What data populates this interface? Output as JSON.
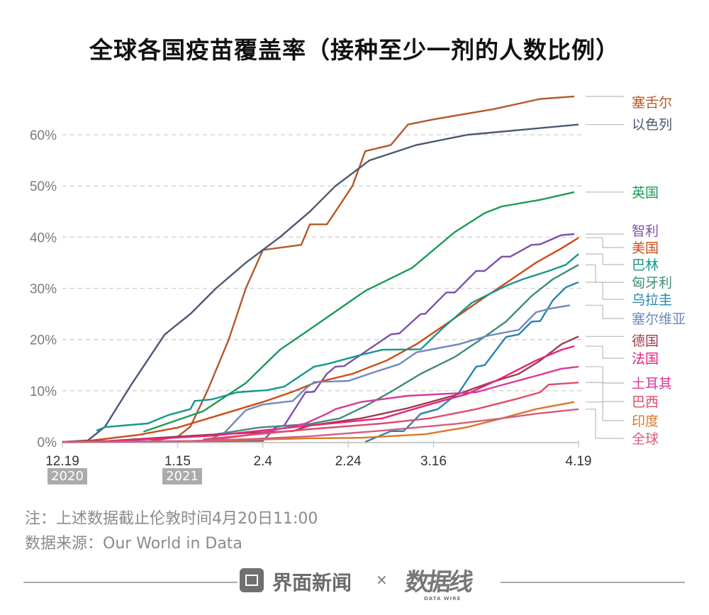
{
  "chart_data": {
    "type": "line",
    "title": "全球各国疫苗覆盖率（接种至少一剂的人数比例）",
    "xlabel": "",
    "ylabel": "",
    "x_range": [
      "2020-12-19",
      "2021-04-19"
    ],
    "x_ticks": [
      "12.19",
      "1.15",
      "2.4",
      "2.24",
      "3.16",
      "4.19"
    ],
    "x_tick_dates": [
      "2020-12-19",
      "2021-01-15",
      "2021-02-04",
      "2021-02-24",
      "2021-03-16",
      "2021-04-19"
    ],
    "year_badges": [
      "2020",
      "2021"
    ],
    "ylim": [
      0,
      68
    ],
    "y_ticks": [
      "0%",
      "10%",
      "20%",
      "30%",
      "40%",
      "50%",
      "60%"
    ],
    "y_tick_values": [
      0,
      10,
      20,
      30,
      40,
      50,
      60
    ],
    "grid": "horizontal dashed",
    "legend": "right, direct labels with leader lines",
    "series": [
      {
        "name": "塞舌尔",
        "color": "#b5572b",
        "points": [
          [
            "2020-12-19",
            0
          ],
          [
            "2021-01-08",
            0.1
          ],
          [
            "2021-01-15",
            1
          ],
          [
            "2021-01-18",
            3
          ],
          [
            "2021-01-22",
            10
          ],
          [
            "2021-01-27",
            20
          ],
          [
            "2021-01-31",
            30
          ],
          [
            "2021-02-04",
            37.5
          ],
          [
            "2021-02-13",
            38.5
          ],
          [
            "2021-02-15",
            42.5
          ],
          [
            "2021-02-19",
            42.5
          ],
          [
            "2021-02-21",
            45
          ],
          [
            "2021-02-25",
            50
          ],
          [
            "2021-02-28",
            56.8
          ],
          [
            "2021-03-06",
            58
          ],
          [
            "2021-03-10",
            62
          ],
          [
            "2021-03-16",
            63
          ],
          [
            "2021-03-30",
            65
          ],
          [
            "2021-04-10",
            67
          ],
          [
            "2021-04-18",
            67.5
          ]
        ]
      },
      {
        "name": "以色列",
        "color": "#4a5872",
        "points": [
          [
            "2020-12-19",
            0
          ],
          [
            "2020-12-25",
            0.3
          ],
          [
            "2020-12-29",
            3
          ],
          [
            "2021-01-04",
            11
          ],
          [
            "2021-01-12",
            21
          ],
          [
            "2021-01-18",
            25
          ],
          [
            "2021-01-24",
            30
          ],
          [
            "2021-01-31",
            35
          ],
          [
            "2021-02-08",
            40
          ],
          [
            "2021-02-15",
            45
          ],
          [
            "2021-02-21",
            50
          ],
          [
            "2021-03-01",
            55
          ],
          [
            "2021-03-12",
            58
          ],
          [
            "2021-03-24",
            60
          ],
          [
            "2021-04-06",
            61
          ],
          [
            "2021-04-19",
            62
          ]
        ]
      },
      {
        "name": "英国",
        "color": "#1a9a58",
        "points": [
          [
            "2021-01-07",
            2.0
          ],
          [
            "2021-01-21",
            6
          ],
          [
            "2021-01-31",
            11.5
          ],
          [
            "2021-02-08",
            18
          ],
          [
            "2021-02-15",
            22
          ],
          [
            "2021-02-28",
            29.5
          ],
          [
            "2021-03-11",
            34
          ],
          [
            "2021-03-21",
            41
          ],
          [
            "2021-03-28",
            44.7
          ],
          [
            "2021-04-01",
            46
          ],
          [
            "2021-04-10",
            47.3
          ],
          [
            "2021-04-18",
            48.8
          ]
        ]
      },
      {
        "name": "智利",
        "color": "#7f4fa8",
        "points": [
          [
            "2020-12-19",
            0
          ],
          [
            "2021-02-04",
            0.2
          ],
          [
            "2021-02-07",
            2.9
          ],
          [
            "2021-02-09",
            3.2
          ],
          [
            "2021-02-14",
            9.7
          ],
          [
            "2021-02-16",
            9.8
          ],
          [
            "2021-02-19",
            13.3
          ],
          [
            "2021-02-21",
            14.7
          ],
          [
            "2021-02-23",
            14.8
          ],
          [
            "2021-03-06",
            21
          ],
          [
            "2021-03-08",
            21.2
          ],
          [
            "2021-03-13",
            25
          ],
          [
            "2021-03-14",
            25
          ],
          [
            "2021-03-19",
            29.2
          ],
          [
            "2021-03-21",
            29.2
          ],
          [
            "2021-03-26",
            33.4
          ],
          [
            "2021-03-28",
            33.4
          ],
          [
            "2021-04-01",
            36.2
          ],
          [
            "2021-04-03",
            36.2
          ],
          [
            "2021-04-08",
            38.5
          ],
          [
            "2021-04-10",
            38.6
          ],
          [
            "2021-04-15",
            40.4
          ],
          [
            "2021-04-18",
            40.6
          ]
        ]
      },
      {
        "name": "美国",
        "color": "#cc4b15",
        "points": [
          [
            "2020-12-19",
            0
          ],
          [
            "2020-12-25",
            0.2
          ],
          [
            "2021-01-06",
            1.4
          ],
          [
            "2021-01-15",
            2.8
          ],
          [
            "2021-01-25",
            5.3
          ],
          [
            "2021-02-04",
            7.8
          ],
          [
            "2021-02-11",
            9.8
          ],
          [
            "2021-02-16",
            11.5
          ],
          [
            "2021-02-25",
            13.3
          ],
          [
            "2021-03-05",
            15.9
          ],
          [
            "2021-03-12",
            19.1
          ],
          [
            "2021-03-21",
            24.2
          ],
          [
            "2021-03-27",
            27.7
          ],
          [
            "2021-04-03",
            31.6
          ],
          [
            "2021-04-09",
            35
          ],
          [
            "2021-04-15",
            37.8
          ],
          [
            "2021-04-19",
            39.9
          ]
        ]
      },
      {
        "name": "巴林",
        "color": "#17968c",
        "points": [
          [
            "2020-12-27",
            2.2
          ],
          [
            "2020-12-29",
            2.9
          ],
          [
            "2021-01-08",
            3.6
          ],
          [
            "2021-01-13",
            5.3
          ],
          [
            "2021-01-18",
            6.4
          ],
          [
            "2021-01-19",
            8
          ],
          [
            "2021-01-23",
            8.3
          ],
          [
            "2021-01-29",
            9.7
          ],
          [
            "2021-02-05",
            10.1
          ],
          [
            "2021-02-09",
            10.8
          ],
          [
            "2021-02-16",
            14.7
          ],
          [
            "2021-02-19",
            15.2
          ],
          [
            "2021-02-27",
            17
          ],
          [
            "2021-03-04",
            18
          ],
          [
            "2021-03-13",
            18.1
          ],
          [
            "2021-03-18",
            22.1
          ],
          [
            "2021-03-25",
            27.2
          ],
          [
            "2021-04-02",
            30.5
          ],
          [
            "2021-04-06",
            31.8
          ],
          [
            "2021-04-12",
            33.4
          ],
          [
            "2021-04-16",
            34.6
          ],
          [
            "2021-04-19",
            36.7
          ]
        ]
      },
      {
        "name": "匈牙利",
        "color": "#3d8c78",
        "points": [
          [
            "2021-01-21",
            1.1
          ],
          [
            "2021-02-03",
            2.8
          ],
          [
            "2021-02-15",
            3.5
          ],
          [
            "2021-02-22",
            4.6
          ],
          [
            "2021-02-28",
            7
          ],
          [
            "2021-03-06",
            9.8
          ],
          [
            "2021-03-13",
            13.3
          ],
          [
            "2021-03-21",
            16.6
          ],
          [
            "2021-03-26",
            19.4
          ],
          [
            "2021-04-02",
            23.5
          ],
          [
            "2021-04-08",
            28.5
          ],
          [
            "2021-04-13",
            31.8
          ],
          [
            "2021-04-19",
            34.6
          ]
        ]
      },
      {
        "name": "乌拉圭",
        "color": "#2585b0",
        "points": [
          [
            "2021-02-28",
            0
          ],
          [
            "2021-03-06",
            2.1
          ],
          [
            "2021-03-09",
            2.1
          ],
          [
            "2021-03-13",
            5.5
          ],
          [
            "2021-03-17",
            6.4
          ],
          [
            "2021-03-22",
            9.7
          ],
          [
            "2021-03-26",
            14.7
          ],
          [
            "2021-03-28",
            15
          ],
          [
            "2021-04-02",
            20.5
          ],
          [
            "2021-04-05",
            21
          ],
          [
            "2021-04-08",
            23.5
          ],
          [
            "2021-04-10",
            23.6
          ],
          [
            "2021-04-13",
            27.7
          ],
          [
            "2021-04-16",
            30.2
          ],
          [
            "2021-04-19",
            31.2
          ]
        ]
      },
      {
        "name": "塞尔维亚",
        "color": "#6f88c0",
        "points": [
          [
            "2021-01-22",
            0.3
          ],
          [
            "2021-01-26",
            1.8
          ],
          [
            "2021-01-31",
            6.2
          ],
          [
            "2021-02-04",
            7.3
          ],
          [
            "2021-02-11",
            8
          ],
          [
            "2021-02-14",
            10.4
          ],
          [
            "2021-02-16",
            11.7
          ],
          [
            "2021-02-24",
            11.9
          ],
          [
            "2021-03-02",
            13.6
          ],
          [
            "2021-03-08",
            15.2
          ],
          [
            "2021-03-12",
            17.5
          ],
          [
            "2021-03-22",
            19.1
          ],
          [
            "2021-03-29",
            20.8
          ],
          [
            "2021-04-05",
            21.9
          ],
          [
            "2021-04-09",
            25.3
          ],
          [
            "2021-04-12",
            26
          ],
          [
            "2021-04-17",
            26.7
          ]
        ]
      },
      {
        "name": "德国",
        "color": "#9c3c4c",
        "points": [
          [
            "2020-12-19",
            0
          ],
          [
            "2020-12-30",
            0.2
          ],
          [
            "2021-01-22",
            1.4
          ],
          [
            "2021-02-11",
            2.1
          ],
          [
            "2021-02-15",
            3.2
          ],
          [
            "2021-02-27",
            4.6
          ],
          [
            "2021-03-10",
            6.6
          ],
          [
            "2021-03-21",
            9.1
          ],
          [
            "2021-03-29",
            11.5
          ],
          [
            "2021-04-05",
            13.3
          ],
          [
            "2021-04-10",
            15.9
          ],
          [
            "2021-04-15",
            19.1
          ],
          [
            "2021-04-19",
            20.6
          ]
        ]
      },
      {
        "name": "法国",
        "color": "#e5237f",
        "points": [
          [
            "2020-12-19",
            0
          ],
          [
            "2020-12-29",
            0.1
          ],
          [
            "2021-01-23",
            1.2
          ],
          [
            "2021-02-15",
            3.2
          ],
          [
            "2021-03-04",
            4.6
          ],
          [
            "2021-03-15",
            7.3
          ],
          [
            "2021-03-24",
            9.4
          ],
          [
            "2021-04-01",
            12.5
          ],
          [
            "2021-04-09",
            15.9
          ],
          [
            "2021-04-15",
            18
          ],
          [
            "2021-04-18",
            18.7
          ]
        ]
      },
      {
        "name": "土耳其",
        "color": "#d8399a",
        "points": [
          [
            "2021-01-20",
            0.1
          ],
          [
            "2021-02-02",
            1.5
          ],
          [
            "2021-02-14",
            3.6
          ],
          [
            "2021-02-19",
            5.5
          ],
          [
            "2021-02-21",
            6.4
          ],
          [
            "2021-02-27",
            7.8
          ],
          [
            "2021-03-10",
            9
          ],
          [
            "2021-03-26",
            9.7
          ],
          [
            "2021-04-01",
            11.1
          ],
          [
            "2021-04-09",
            12.9
          ],
          [
            "2021-04-15",
            14.3
          ],
          [
            "2021-04-19",
            14.7
          ]
        ]
      },
      {
        "name": "巴西",
        "color": "#e04b68",
        "points": [
          [
            "2021-01-21",
            0.5
          ],
          [
            "2021-02-15",
            2.5
          ],
          [
            "2021-03-04",
            3.6
          ],
          [
            "2021-03-15",
            4.6
          ],
          [
            "2021-03-26",
            6.4
          ],
          [
            "2021-04-04",
            8.3
          ],
          [
            "2021-04-10",
            9.7
          ],
          [
            "2021-04-12",
            11.2
          ],
          [
            "2021-04-19",
            11.6
          ]
        ]
      },
      {
        "name": "印度",
        "color": "#d9782a",
        "points": [
          [
            "2021-01-16",
            0.1
          ],
          [
            "2021-02-15",
            0.7
          ],
          [
            "2021-02-27",
            0.8
          ],
          [
            "2021-03-14",
            1.5
          ],
          [
            "2021-03-24",
            2.9
          ],
          [
            "2021-04-01",
            4.6
          ],
          [
            "2021-04-09",
            6.4
          ],
          [
            "2021-04-18",
            7.8
          ]
        ]
      },
      {
        "name": "全球",
        "color": "#d55d7c",
        "points": [
          [
            "2020-12-19",
            0
          ],
          [
            "2021-01-18",
            0.2
          ],
          [
            "2021-02-02",
            0.6
          ],
          [
            "2021-02-15",
            1.1
          ],
          [
            "2021-03-04",
            2.2
          ],
          [
            "2021-03-21",
            3.5
          ],
          [
            "2021-04-01",
            4.6
          ],
          [
            "2021-04-09",
            5.5
          ],
          [
            "2021-04-19",
            6.4
          ]
        ]
      }
    ]
  },
  "notes": {
    "note": "注：上述数据截止伦敦时间4月20日11:00",
    "source": "数据来源：Our World in Data"
  },
  "footer": {
    "brand1": "界面新闻",
    "times": "×",
    "brand2": "数据线",
    "brand2_sub": "DATA WIRE"
  }
}
